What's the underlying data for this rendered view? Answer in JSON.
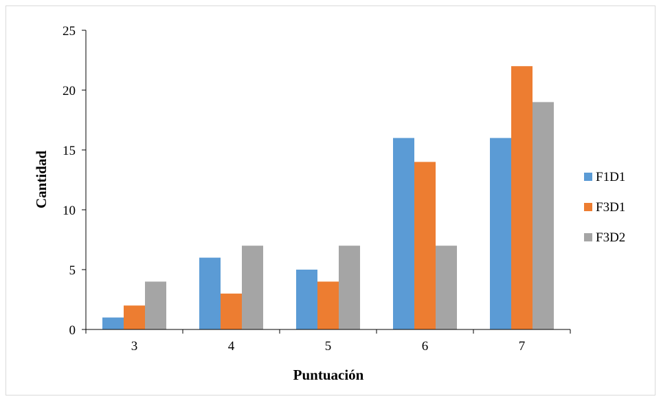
{
  "chart_data": {
    "type": "bar",
    "categories": [
      "3",
      "4",
      "5",
      "6",
      "7"
    ],
    "series": [
      {
        "name": "F1D1",
        "color": "#5b9bd5",
        "values": [
          1,
          6,
          5,
          16,
          16
        ]
      },
      {
        "name": "F3D1",
        "color": "#ed7d31",
        "values": [
          2,
          3,
          4,
          14,
          22
        ]
      },
      {
        "name": "F3D2",
        "color": "#a5a5a5",
        "values": [
          4,
          7,
          7,
          7,
          19
        ]
      }
    ],
    "xlabel": "Puntuación",
    "ylabel": "Cantidad",
    "ylim": [
      0,
      25
    ],
    "yticks": [
      0,
      5,
      10,
      15,
      20,
      25
    ],
    "grid": false,
    "legend": "right"
  }
}
